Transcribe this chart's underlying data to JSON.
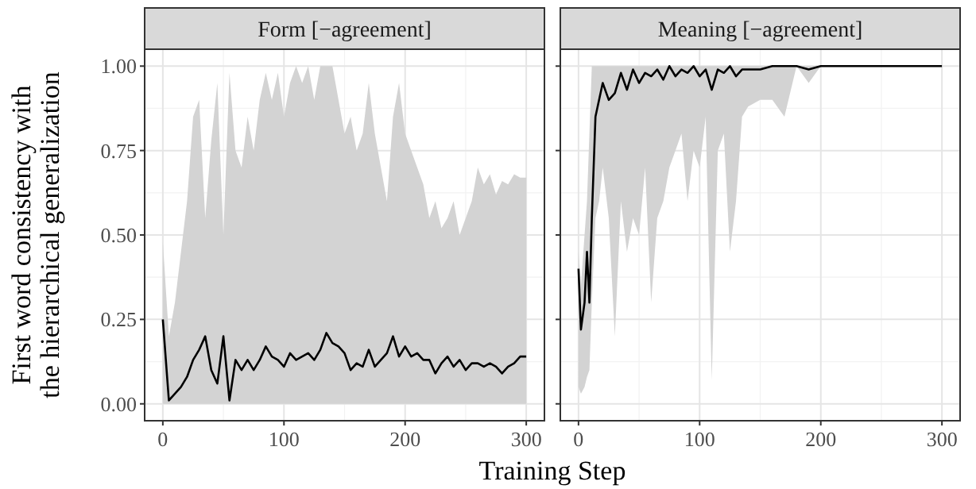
{
  "chart_data": [
    {
      "type": "line",
      "title": "Form [−agreement]",
      "ylabel": "First word consistency with\nthe hierarchical generalization",
      "xlabel": "Training Step",
      "xlim": [
        -15,
        315
      ],
      "ylim": [
        -0.05,
        1.05
      ],
      "xticks": [
        0,
        100,
        200,
        300
      ],
      "yticks": [
        {
          "value": 0,
          "label": "0.00"
        },
        {
          "value": 0.25,
          "label": "0.25"
        },
        {
          "value": 0.5,
          "label": "0.50"
        },
        {
          "value": 0.75,
          "label": "0.75"
        },
        {
          "value": 1,
          "label": "1.00"
        }
      ],
      "grid": true,
      "series": [
        {
          "color": "#000000",
          "x": [
            0,
            5,
            10,
            15,
            20,
            25,
            30,
            35,
            40,
            45,
            50,
            55,
            60,
            65,
            70,
            75,
            80,
            85,
            90,
            95,
            100,
            105,
            110,
            115,
            120,
            125,
            130,
            135,
            140,
            145,
            150,
            155,
            160,
            165,
            170,
            175,
            180,
            185,
            190,
            195,
            200,
            205,
            210,
            215,
            220,
            225,
            230,
            235,
            240,
            245,
            250,
            255,
            260,
            265,
            270,
            275,
            280,
            285,
            290,
            295,
            300
          ],
          "values": [
            0.25,
            0.01,
            0.03,
            0.05,
            0.08,
            0.13,
            0.16,
            0.2,
            0.1,
            0.06,
            0.2,
            0.01,
            0.13,
            0.1,
            0.13,
            0.1,
            0.13,
            0.17,
            0.14,
            0.13,
            0.11,
            0.15,
            0.13,
            0.14,
            0.15,
            0.13,
            0.16,
            0.21,
            0.18,
            0.17,
            0.15,
            0.1,
            0.12,
            0.11,
            0.16,
            0.11,
            0.13,
            0.15,
            0.2,
            0.14,
            0.17,
            0.14,
            0.15,
            0.13,
            0.13,
            0.09,
            0.12,
            0.14,
            0.11,
            0.13,
            0.1,
            0.12,
            0.12,
            0.11,
            0.12,
            0.11,
            0.09,
            0.11,
            0.12,
            0.14,
            0.14
          ],
          "lower": [
            0,
            0,
            0,
            0,
            0,
            0,
            0,
            0,
            0,
            0,
            0,
            0,
            0,
            0,
            0,
            0,
            0,
            0,
            0,
            0,
            0,
            0,
            0,
            0,
            0,
            0,
            0,
            0,
            0,
            0,
            0,
            0,
            0,
            0,
            0,
            0,
            0,
            0,
            0,
            0,
            0,
            0,
            0,
            0,
            0,
            0,
            0,
            0,
            0,
            0,
            0,
            0,
            0,
            0,
            0,
            0,
            0,
            0,
            0,
            0,
            0
          ],
          "upper": [
            0.48,
            0.2,
            0.3,
            0.45,
            0.6,
            0.85,
            0.9,
            0.55,
            0.78,
            0.95,
            0.5,
            0.98,
            0.75,
            0.7,
            0.85,
            0.75,
            0.9,
            0.98,
            0.9,
            0.98,
            0.85,
            0.95,
            1.0,
            0.95,
            1.0,
            0.9,
            1.0,
            1.0,
            1.0,
            0.9,
            0.8,
            0.85,
            0.75,
            0.8,
            0.95,
            0.8,
            0.7,
            0.6,
            0.85,
            0.95,
            0.8,
            0.75,
            0.7,
            0.65,
            0.55,
            0.6,
            0.52,
            0.55,
            0.6,
            0.5,
            0.55,
            0.6,
            0.7,
            0.65,
            0.68,
            0.62,
            0.66,
            0.65,
            0.68,
            0.67,
            0.67
          ]
        }
      ]
    },
    {
      "type": "line",
      "title": "Meaning [−agreement]",
      "xlim": [
        -15,
        315
      ],
      "ylim": [
        -0.05,
        1.05
      ],
      "xticks": [
        0,
        100,
        200,
        300
      ],
      "yticks": [
        {
          "value": 0,
          "label": null
        },
        {
          "value": 0.25,
          "label": null
        },
        {
          "value": 0.5,
          "label": null
        },
        {
          "value": 0.75,
          "label": null
        },
        {
          "value": 1,
          "label": null
        }
      ],
      "grid": true,
      "tick_labels": "x",
      "series": [
        {
          "color": "#000000",
          "x": [
            0,
            2,
            5,
            7,
            9,
            11,
            14,
            17,
            20,
            25,
            30,
            35,
            40,
            45,
            50,
            55,
            60,
            65,
            70,
            75,
            80,
            85,
            90,
            95,
            100,
            105,
            110,
            115,
            120,
            125,
            130,
            135,
            140,
            150,
            160,
            170,
            180,
            190,
            200,
            250,
            300
          ],
          "values": [
            0.4,
            0.22,
            0.3,
            0.45,
            0.3,
            0.55,
            0.85,
            0.9,
            0.95,
            0.9,
            0.92,
            0.98,
            0.93,
            0.99,
            0.95,
            0.98,
            0.97,
            0.99,
            0.96,
            1.0,
            0.97,
            0.99,
            0.98,
            1.0,
            0.97,
            0.99,
            0.93,
            0.99,
            0.98,
            1.0,
            0.97,
            0.99,
            0.99,
            0.99,
            1.0,
            1.0,
            1.0,
            0.99,
            1.0,
            1.0,
            1.0
          ],
          "lower": [
            0.05,
            0.03,
            0.05,
            0.08,
            0.1,
            0.3,
            0.55,
            0.6,
            0.7,
            0.55,
            0.2,
            0.6,
            0.45,
            0.55,
            0.5,
            0.7,
            0.3,
            0.55,
            0.6,
            0.7,
            0.75,
            0.8,
            0.6,
            0.75,
            0.7,
            0.85,
            0.07,
            0.75,
            0.8,
            0.45,
            0.6,
            0.85,
            0.88,
            0.9,
            0.9,
            0.85,
            1.0,
            0.95,
            1.0,
            1.0,
            1.0
          ],
          "upper": [
            0.45,
            0.35,
            0.5,
            0.6,
            0.8,
            1.0,
            1.0,
            1.0,
            1.0,
            1.0,
            1.0,
            1.0,
            1.0,
            1.0,
            1.0,
            1.0,
            1.0,
            1.0,
            1.0,
            1.0,
            1.0,
            1.0,
            1.0,
            1.0,
            1.0,
            1.0,
            1.0,
            1.0,
            1.0,
            1.0,
            1.0,
            1.0,
            1.0,
            1.0,
            1.0,
            1.0,
            1.0,
            1.0,
            1.0,
            1.0,
            1.0
          ]
        }
      ]
    }
  ]
}
